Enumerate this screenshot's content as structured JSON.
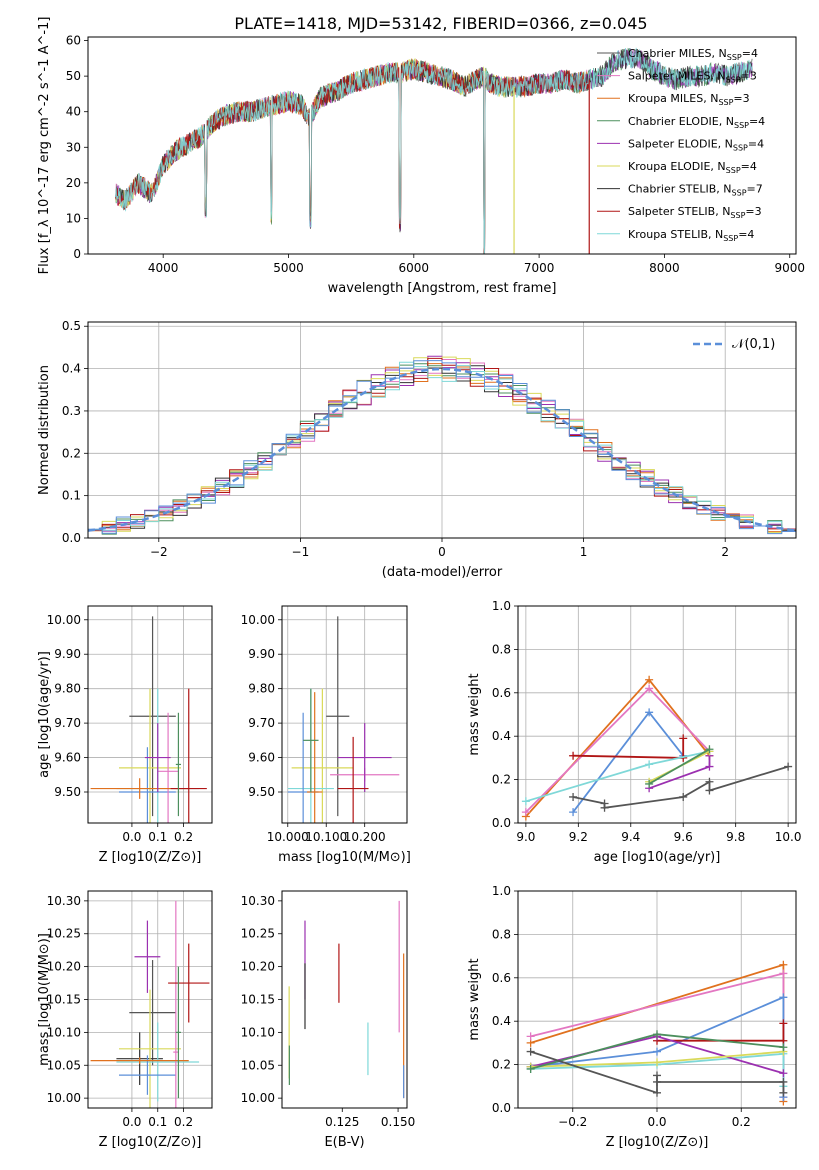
{
  "figure": {
    "title": "PLATE=1418, MJD=53142, FIBERID=0366, z=0.045"
  },
  "legend_colors": [
    "#555555",
    "#e377c2",
    "#e0711e",
    "#4c8f5d",
    "#9b30b0",
    "#d9d95a",
    "#333333",
    "#b01515",
    "#7fd8d8"
  ],
  "chart_data": [
    {
      "type": "line",
      "panel": "spectrum",
      "title": "PLATE=1418, MJD=53142, FIBERID=0366, z=0.045",
      "xlabel": "wavelength [Angstrom, rest frame]",
      "ylabel": "Flux [f_λ 10^-17 erg cm^-2 s^-1 A^-1]",
      "xlim": [
        3400,
        9050
      ],
      "ylim": [
        0,
        61
      ],
      "xticks": [
        4000,
        5000,
        6000,
        7000,
        8000,
        9000
      ],
      "yticks": [
        0,
        10,
        20,
        30,
        40,
        50,
        60
      ],
      "grid": false,
      "legend_position": "right",
      "series": [
        {
          "name": "Chabrier MILES, N_SSP=4",
          "color": "#555555"
        },
        {
          "name": "Salpeter MILES, N_SSP=3",
          "color": "#e377c2"
        },
        {
          "name": "Kroupa MILES, N_SSP=3",
          "color": "#e0711e"
        },
        {
          "name": "Chabrier ELODIE, N_SSP=4",
          "color": "#4c8f5d"
        },
        {
          "name": "Salpeter ELODIE, N_SSP=4",
          "color": "#9b30b0"
        },
        {
          "name": "Kroupa ELODIE, N_SSP=4",
          "color": "#d9d95a"
        },
        {
          "name": "Chabrier STELIB, N_SSP=7",
          "color": "#333333"
        },
        {
          "name": "Salpeter STELIB, N_SSP=3",
          "color": "#b01515"
        },
        {
          "name": "Kroupa STELIB, N_SSP=4",
          "color": "#7fd8d8"
        }
      ],
      "continuum": [
        [
          3620,
          17
        ],
        [
          3700,
          15
        ],
        [
          3800,
          20
        ],
        [
          3900,
          17
        ],
        [
          3950,
          20
        ],
        [
          4000,
          25
        ],
        [
          4100,
          29
        ],
        [
          4200,
          31
        ],
        [
          4300,
          33
        ],
        [
          4400,
          37
        ],
        [
          4500,
          39
        ],
        [
          4600,
          40
        ],
        [
          4700,
          40
        ],
        [
          4800,
          41
        ],
        [
          4900,
          42
        ],
        [
          5000,
          43
        ],
        [
          5100,
          42
        ],
        [
          5170,
          38
        ],
        [
          5250,
          44
        ],
        [
          5400,
          46
        ],
        [
          5500,
          48
        ],
        [
          5600,
          49
        ],
        [
          5700,
          50
        ],
        [
          5800,
          51
        ],
        [
          5900,
          51
        ],
        [
          6000,
          52
        ],
        [
          6100,
          51
        ],
        [
          6200,
          50
        ],
        [
          6300,
          49
        ],
        [
          6400,
          47
        ],
        [
          6500,
          49
        ],
        [
          6563,
          50
        ],
        [
          6600,
          48
        ],
        [
          6700,
          47
        ],
        [
          6800,
          47
        ],
        [
          6900,
          47
        ],
        [
          7000,
          48
        ],
        [
          7100,
          48
        ],
        [
          7200,
          49
        ],
        [
          7300,
          48
        ],
        [
          7400,
          49
        ],
        [
          7500,
          50
        ],
        [
          7600,
          54
        ],
        [
          7700,
          55
        ],
        [
          7800,
          55
        ],
        [
          7900,
          52
        ],
        [
          8000,
          50
        ],
        [
          8100,
          49
        ],
        [
          8200,
          50
        ],
        [
          8300,
          50
        ],
        [
          8400,
          51
        ],
        [
          8500,
          50
        ],
        [
          8600,
          51
        ],
        [
          8700,
          52
        ]
      ],
      "absorption_dips": [
        [
          3933,
          38
        ],
        [
          3968,
          34
        ],
        [
          4340,
          10
        ],
        [
          4861,
          8
        ],
        [
          5175,
          7
        ],
        [
          5890,
          6
        ],
        [
          6563,
          -4
        ]
      ],
      "spectrum_end_per_series": [
        8700,
        7400,
        7400,
        8700,
        8700,
        6800,
        8700,
        7400,
        8700
      ],
      "vertical_drops": [
        [
          6800,
          "#d9d95a"
        ],
        [
          7400,
          "#b01515"
        ]
      ]
    },
    {
      "type": "line",
      "panel": "residual_histogram",
      "xlabel": "(data-model)/error",
      "ylabel": "Normed distribution",
      "xlim": [
        -2.5,
        2.5
      ],
      "ylim": [
        0,
        0.51
      ],
      "xticks": [
        -2,
        -1,
        0,
        1,
        2
      ],
      "yticks": [
        0.0,
        0.1,
        0.2,
        0.3,
        0.4,
        0.5
      ],
      "grid": true,
      "legend_position": "top-right",
      "reference_curve": {
        "name": "𝒩(0,1)",
        "color": "#5b8fd9",
        "style": "dashed"
      },
      "bin_width": 0.1,
      "colors": [
        "#e0711e",
        "#e377c2",
        "#9b30b0",
        "#4c8f5d",
        "#d9d95a",
        "#b01515",
        "#333333",
        "#7fd8d8",
        "#5b8fd9"
      ]
    },
    {
      "type": "scatter",
      "panel": "age_vs_Z",
      "xlabel": "Z [log10(Z/Z⊙)]",
      "ylabel": "age [log10(age/yr)]",
      "xlim": [
        -0.17,
        0.31
      ],
      "ylim": [
        9.41,
        10.04
      ],
      "xticks": [
        0.0,
        0.1,
        0.2
      ],
      "yticks": [
        9.5,
        9.6,
        9.7,
        9.8,
        9.9,
        10.0
      ],
      "grid": true,
      "points": [
        {
          "x": 0.08,
          "y": 9.72,
          "xerr": 0.09,
          "yerr": 0.29,
          "color": "#555555"
        },
        {
          "x": 0.07,
          "y": 9.57,
          "xerr": 0.12,
          "yerr": 0.23,
          "color": "#d9d95a"
        },
        {
          "x": 0.1,
          "y": 9.51,
          "xerr": 0.16,
          "yerr": 0.29,
          "color": "#7fd8d8"
        },
        {
          "x": 0.06,
          "y": 9.5,
          "xerr": 0.11,
          "yerr": 0.13,
          "color": "#5b8fd9"
        },
        {
          "x": 0.14,
          "y": 9.56,
          "xerr": 0.04,
          "yerr": 0.17,
          "color": "#e377c2"
        },
        {
          "x": 0.03,
          "y": 9.51,
          "xerr": 0.19,
          "yerr": 0.03,
          "color": "#e0711e"
        },
        {
          "x": 0.1,
          "y": 9.6,
          "xerr": 0.05,
          "yerr": 0.1,
          "color": "#9b30b0"
        },
        {
          "x": 0.22,
          "y": 9.51,
          "xerr": 0.07,
          "yerr": 0.29,
          "color": "#b01515"
        },
        {
          "x": 0.18,
          "y": 9.58,
          "xerr": 0.01,
          "yerr": 0.15,
          "color": "#4c8f5d"
        }
      ]
    },
    {
      "type": "scatter",
      "panel": "age_vs_mass",
      "xlabel": "mass [log10(M/M⊙)]",
      "ylabel": "",
      "xlim": [
        9.985,
        10.31
      ],
      "ylim": [
        9.41,
        10.04
      ],
      "xticks": [
        10.0,
        10.1,
        10.2
      ],
      "yticks": [
        9.5,
        9.6,
        9.7,
        9.8,
        9.9,
        10.0
      ],
      "grid": true,
      "points": [
        {
          "x": 10.13,
          "y": 9.72,
          "xerr": 0.03,
          "yerr": 0.29,
          "color": "#555555"
        },
        {
          "x": 10.09,
          "y": 9.57,
          "xerr": 0.08,
          "yerr": 0.23,
          "color": "#d9d95a"
        },
        {
          "x": 10.06,
          "y": 9.51,
          "xerr": 0.06,
          "yerr": 0.29,
          "color": "#7fd8d8"
        },
        {
          "x": 10.04,
          "y": 9.5,
          "xerr": 0.04,
          "yerr": 0.23,
          "color": "#5b8fd9"
        },
        {
          "x": 10.2,
          "y": 9.55,
          "xerr": 0.09,
          "yerr": 0.02,
          "color": "#e377c2"
        },
        {
          "x": 10.07,
          "y": 9.5,
          "xerr": 0.02,
          "yerr": 0.29,
          "color": "#e0711e"
        },
        {
          "x": 10.2,
          "y": 9.6,
          "xerr": 0.07,
          "yerr": 0.1,
          "color": "#9b30b0"
        },
        {
          "x": 10.17,
          "y": 9.51,
          "xerr": 0.04,
          "yerr": 0.15,
          "color": "#b01515"
        },
        {
          "x": 10.06,
          "y": 9.65,
          "xerr": 0.02,
          "yerr": 0.15,
          "color": "#4c8f5d"
        }
      ]
    },
    {
      "type": "line",
      "panel": "mass_weight_vs_age",
      "xlabel": "age [log10(age/yr)]",
      "ylabel": "mass weight",
      "xlim": [
        8.97,
        10.03
      ],
      "ylim": [
        0,
        1.0
      ],
      "xticks": [
        9.0,
        9.2,
        9.4,
        9.6,
        9.8,
        10.0
      ],
      "yticks": [
        0.0,
        0.2,
        0.4,
        0.6,
        0.8,
        1.0
      ],
      "grid": true,
      "series": [
        {
          "color": "#e0711e",
          "x": [
            9.0,
            9.47,
            9.7
          ],
          "y": [
            0.03,
            0.66,
            0.31
          ]
        },
        {
          "color": "#e377c2",
          "x": [
            9.0,
            9.47,
            9.7
          ],
          "y": [
            0.05,
            0.62,
            0.33
          ]
        },
        {
          "color": "#5b8fd9",
          "x": [
            9.18,
            9.47,
            9.6
          ],
          "y": [
            0.05,
            0.51,
            0.31
          ]
        },
        {
          "color": "#b01515",
          "x": [
            9.18,
            9.6,
            9.6
          ],
          "y": [
            0.31,
            0.3,
            0.39
          ]
        },
        {
          "color": "#7fd8d8",
          "x": [
            9.0,
            9.47,
            9.7
          ],
          "y": [
            0.1,
            0.27,
            0.33
          ]
        },
        {
          "color": "#9b30b0",
          "x": [
            9.47,
            9.7,
            9.7
          ],
          "y": [
            0.16,
            0.26,
            0.31
          ]
        },
        {
          "color": "#d9d95a",
          "x": [
            9.47,
            9.7
          ],
          "y": [
            0.19,
            0.33
          ]
        },
        {
          "color": "#4c8f5d",
          "x": [
            9.47,
            9.7
          ],
          "y": [
            0.18,
            0.34
          ]
        },
        {
          "color": "#555555",
          "x": [
            9.18,
            9.3,
            9.3,
            9.6,
            9.7,
            9.7,
            10.0
          ],
          "y": [
            0.12,
            0.09,
            0.07,
            0.12,
            0.19,
            0.15,
            0.26
          ]
        }
      ]
    },
    {
      "type": "scatter",
      "panel": "mass_vs_Z",
      "xlabel": "Z [log10(Z/Z⊙)]",
      "ylabel": "mass [log10(M/M⊙)]",
      "xlim": [
        -0.17,
        0.31
      ],
      "ylim": [
        9.985,
        10.315
      ],
      "xticks": [
        0.0,
        0.1,
        0.2
      ],
      "yticks": [
        10.0,
        10.05,
        10.1,
        10.15,
        10.2,
        10.25,
        10.3
      ],
      "grid": true,
      "points": [
        {
          "x": 0.08,
          "y": 10.13,
          "xerr": 0.09,
          "yerr": 0.08,
          "color": "#555555"
        },
        {
          "x": 0.03,
          "y": 10.06,
          "xerr": 0.09,
          "yerr": 0.04,
          "color": "#333333"
        },
        {
          "x": 0.07,
          "y": 10.075,
          "xerr": 0.12,
          "yerr": 0.09,
          "color": "#d9d95a"
        },
        {
          "x": 0.1,
          "y": 10.055,
          "xerr": 0.16,
          "yerr": 0.06,
          "color": "#7fd8d8"
        },
        {
          "x": 0.06,
          "y": 10.035,
          "xerr": 0.11,
          "yerr": 0.03,
          "color": "#5b8fd9"
        },
        {
          "x": 0.17,
          "y": 10.07,
          "xerr": 0.01,
          "yerr": 0.23,
          "color": "#e377c2"
        },
        {
          "x": 0.03,
          "y": 10.057,
          "xerr": 0.19,
          "yerr": 0.005,
          "color": "#e0711e"
        },
        {
          "x": 0.06,
          "y": 10.215,
          "xerr": 0.05,
          "yerr": 0.055,
          "color": "#9b30b0"
        },
        {
          "x": 0.22,
          "y": 10.175,
          "xerr": 0.08,
          "yerr": 0.06,
          "color": "#b01515"
        },
        {
          "x": 0.18,
          "y": 10.1,
          "xerr": 0.01,
          "yerr": 0.1,
          "color": "#4c8f5d"
        }
      ]
    },
    {
      "type": "scatter",
      "panel": "mass_vs_ebv",
      "xlabel": "E(B-V)",
      "ylabel": "",
      "xlim": [
        0.098,
        0.154
      ],
      "ylim": [
        9.985,
        10.315
      ],
      "xticks": [
        0.125,
        0.15
      ],
      "tick_labels": [
        "0.125",
        "0.150"
      ],
      "yticks": [
        10.0,
        10.05,
        10.1,
        10.15,
        10.2,
        10.25,
        10.3
      ],
      "grid": false,
      "points": [
        {
          "x": 0.1012,
          "y": 10.1,
          "yerr": 0.07,
          "color": "#d9d95a"
        },
        {
          "x": 0.1013,
          "y": 10.05,
          "yerr": 0.03,
          "color": "#4c8f5d"
        },
        {
          "x": 0.1083,
          "y": 10.21,
          "yerr": 0.06,
          "color": "#9b30b0"
        },
        {
          "x": 0.1083,
          "y": 10.155,
          "yerr": 0.05,
          "color": "#333333"
        },
        {
          "x": 0.1235,
          "y": 10.19,
          "yerr": 0.045,
          "color": "#b01515"
        },
        {
          "x": 0.1365,
          "y": 10.075,
          "yerr": 0.04,
          "color": "#7fd8d8"
        },
        {
          "x": 0.1505,
          "y": 10.2,
          "yerr": 0.1,
          "color": "#e377c2"
        },
        {
          "x": 0.1525,
          "y": 10.11,
          "yerr": 0.11,
          "color": "#e0711e"
        },
        {
          "x": 0.1525,
          "y": 10.025,
          "yerr": 0.025,
          "color": "#5b8fd9"
        }
      ]
    },
    {
      "type": "line",
      "panel": "mass_weight_vs_Z",
      "xlabel": "Z [log10(Z/Z⊙)]",
      "ylabel": "mass weight",
      "xlim": [
        -0.33,
        0.33
      ],
      "ylim": [
        0,
        1.0
      ],
      "xticks": [
        -0.2,
        0.0,
        0.2
      ],
      "yticks": [
        0.0,
        0.2,
        0.4,
        0.6,
        0.8,
        1.0
      ],
      "grid": true,
      "series": [
        {
          "color": "#e0711e",
          "x": [
            -0.3,
            0.3,
            0.3
          ],
          "y": [
            0.3,
            0.66,
            0.03
          ]
        },
        {
          "color": "#e377c2",
          "x": [
            -0.3,
            0.3,
            0.3
          ],
          "y": [
            0.33,
            0.62,
            0.05
          ]
        },
        {
          "color": "#5b8fd9",
          "x": [
            -0.3,
            0.0,
            0.3,
            0.3
          ],
          "y": [
            0.19,
            0.26,
            0.51,
            0.05
          ]
        },
        {
          "color": "#b01515",
          "x": [
            0.0,
            0.3,
            0.3
          ],
          "y": [
            0.31,
            0.31,
            0.39
          ]
        },
        {
          "color": "#7fd8d8",
          "x": [
            -0.3,
            0.0,
            0.3,
            0.3
          ],
          "y": [
            0.18,
            0.2,
            0.25,
            0.1
          ]
        },
        {
          "color": "#9b30b0",
          "x": [
            -0.3,
            0.0,
            0.3
          ],
          "y": [
            0.19,
            0.33,
            0.16
          ]
        },
        {
          "color": "#d9d95a",
          "x": [
            -0.3,
            0.0,
            0.3
          ],
          "y": [
            0.19,
            0.21,
            0.26
          ]
        },
        {
          "color": "#4c8f5d",
          "x": [
            -0.3,
            0.0,
            0.3
          ],
          "y": [
            0.18,
            0.34,
            0.28
          ]
        },
        {
          "color": "#555555",
          "x": [
            -0.3,
            0.0,
            0.0,
            0.0,
            0.3,
            0.3
          ],
          "y": [
            0.26,
            0.07,
            0.15,
            0.12,
            0.12,
            0.07
          ]
        }
      ]
    }
  ]
}
